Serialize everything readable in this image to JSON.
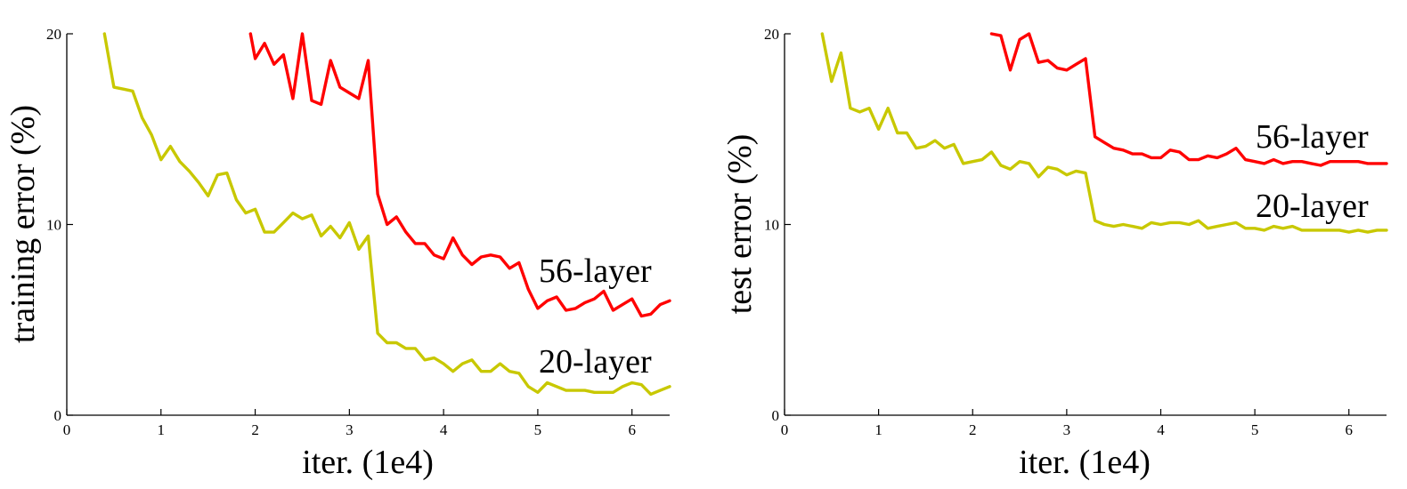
{
  "chart_data": [
    {
      "type": "line",
      "title": "",
      "xlabel": "iter. (1e4)",
      "ylabel": "training error (%)",
      "xlim": [
        0,
        6.4
      ],
      "ylim": [
        0,
        20
      ],
      "xticks": [
        "0",
        "1",
        "2",
        "3",
        "4",
        "5",
        "6"
      ],
      "yticks": [
        "0",
        "10",
        "20"
      ],
      "grid": false,
      "series": [
        {
          "name": "56-layer",
          "color": "#ff0000",
          "x": [
            1.95,
            2.0,
            2.1,
            2.2,
            2.3,
            2.4,
            2.5,
            2.6,
            2.7,
            2.8,
            2.9,
            3.0,
            3.1,
            3.2,
            3.3,
            3.4,
            3.5,
            3.6,
            3.7,
            3.8,
            3.9,
            4.0,
            4.1,
            4.2,
            4.3,
            4.4,
            4.5,
            4.6,
            4.7,
            4.8,
            4.9,
            5.0,
            5.1,
            5.2,
            5.3,
            5.4,
            5.5,
            5.6,
            5.7,
            5.8,
            5.9,
            6.0,
            6.1,
            6.2,
            6.3,
            6.4
          ],
          "y": [
            20.0,
            18.7,
            19.5,
            18.4,
            18.9,
            16.6,
            20.0,
            16.5,
            16.3,
            18.6,
            17.2,
            16.9,
            16.6,
            18.6,
            11.6,
            10.0,
            10.4,
            9.6,
            9.0,
            9.0,
            8.4,
            8.2,
            9.3,
            8.4,
            7.9,
            8.3,
            8.4,
            8.3,
            7.7,
            8.0,
            6.6,
            5.6,
            6.0,
            6.2,
            5.5,
            5.6,
            5.9,
            6.1,
            6.5,
            5.5,
            5.8,
            6.1,
            5.2,
            5.3,
            5.8,
            6.0
          ]
        },
        {
          "name": "20-layer",
          "color": "#c8c800",
          "x": [
            0.4,
            0.5,
            0.6,
            0.7,
            0.8,
            0.9,
            1.0,
            1.1,
            1.2,
            1.3,
            1.4,
            1.5,
            1.6,
            1.7,
            1.8,
            1.9,
            2.0,
            2.1,
            2.2,
            2.3,
            2.4,
            2.5,
            2.6,
            2.7,
            2.8,
            2.9,
            3.0,
            3.1,
            3.2,
            3.3,
            3.4,
            3.5,
            3.6,
            3.7,
            3.8,
            3.9,
            4.0,
            4.1,
            4.2,
            4.3,
            4.4,
            4.5,
            4.6,
            4.7,
            4.8,
            4.9,
            5.0,
            5.1,
            5.2,
            5.3,
            5.4,
            5.5,
            5.6,
            5.7,
            5.8,
            5.9,
            6.0,
            6.1,
            6.2,
            6.3,
            6.4
          ],
          "y": [
            20.0,
            17.2,
            17.1,
            17.0,
            15.6,
            14.7,
            13.4,
            14.1,
            13.3,
            12.8,
            12.2,
            11.5,
            12.6,
            12.7,
            11.3,
            10.6,
            10.8,
            9.6,
            9.6,
            10.1,
            10.6,
            10.3,
            10.5,
            9.4,
            9.9,
            9.3,
            10.1,
            8.7,
            9.4,
            4.3,
            3.8,
            3.8,
            3.5,
            3.5,
            2.9,
            3.0,
            2.7,
            2.3,
            2.7,
            2.9,
            2.3,
            2.3,
            2.7,
            2.3,
            2.2,
            1.5,
            1.2,
            1.7,
            1.5,
            1.3,
            1.3,
            1.3,
            1.2,
            1.2,
            1.2,
            1.5,
            1.7,
            1.6,
            1.1,
            1.3,
            1.5
          ]
        }
      ],
      "annotations": [
        "56-layer",
        "20-layer"
      ]
    },
    {
      "type": "line",
      "title": "",
      "xlabel": "iter. (1e4)",
      "ylabel": "test error (%)",
      "xlim": [
        0,
        6.4
      ],
      "ylim": [
        0,
        20
      ],
      "xticks": [
        "0",
        "1",
        "2",
        "3",
        "4",
        "5",
        "6"
      ],
      "yticks": [
        "0",
        "10",
        "20"
      ],
      "grid": false,
      "series": [
        {
          "name": "56-layer",
          "color": "#ff0000",
          "x": [
            2.2,
            2.3,
            2.4,
            2.5,
            2.6,
            2.7,
            2.8,
            2.9,
            3.0,
            3.1,
            3.2,
            3.3,
            3.4,
            3.5,
            3.6,
            3.7,
            3.8,
            3.9,
            4.0,
            4.1,
            4.2,
            4.3,
            4.4,
            4.5,
            4.6,
            4.7,
            4.8,
            4.9,
            5.0,
            5.1,
            5.2,
            5.3,
            5.4,
            5.5,
            5.6,
            5.7,
            5.8,
            5.9,
            6.0,
            6.1,
            6.2,
            6.3,
            6.4
          ],
          "y": [
            20.0,
            19.9,
            18.1,
            19.7,
            20.0,
            18.5,
            18.6,
            18.2,
            18.1,
            18.4,
            18.7,
            14.6,
            14.3,
            14.0,
            13.9,
            13.7,
            13.7,
            13.5,
            13.5,
            13.9,
            13.8,
            13.4,
            13.4,
            13.6,
            13.5,
            13.7,
            14.0,
            13.4,
            13.3,
            13.2,
            13.4,
            13.2,
            13.3,
            13.3,
            13.2,
            13.1,
            13.3,
            13.3,
            13.3,
            13.3,
            13.2,
            13.2,
            13.2
          ]
        },
        {
          "name": "20-layer",
          "color": "#c8c800",
          "x": [
            0.4,
            0.5,
            0.6,
            0.7,
            0.8,
            0.9,
            1.0,
            1.1,
            1.2,
            1.3,
            1.4,
            1.5,
            1.6,
            1.7,
            1.8,
            1.9,
            2.0,
            2.1,
            2.2,
            2.3,
            2.4,
            2.5,
            2.6,
            2.7,
            2.8,
            2.9,
            3.0,
            3.1,
            3.2,
            3.3,
            3.4,
            3.5,
            3.6,
            3.7,
            3.8,
            3.9,
            4.0,
            4.1,
            4.2,
            4.3,
            4.4,
            4.5,
            4.6,
            4.7,
            4.8,
            4.9,
            5.0,
            5.1,
            5.2,
            5.3,
            5.4,
            5.5,
            5.6,
            5.7,
            5.8,
            5.9,
            6.0,
            6.1,
            6.2,
            6.3,
            6.4
          ],
          "y": [
            20.0,
            17.5,
            19.0,
            16.1,
            15.9,
            16.1,
            15.0,
            16.1,
            14.8,
            14.8,
            14.0,
            14.1,
            14.4,
            14.0,
            14.2,
            13.2,
            13.3,
            13.4,
            13.8,
            13.1,
            12.9,
            13.3,
            13.2,
            12.5,
            13.0,
            12.9,
            12.6,
            12.8,
            12.7,
            10.2,
            10.0,
            9.9,
            10.0,
            9.9,
            9.8,
            10.1,
            10.0,
            10.1,
            10.1,
            10.0,
            10.2,
            9.8,
            9.9,
            10.0,
            10.1,
            9.8,
            9.8,
            9.7,
            9.9,
            9.8,
            9.9,
            9.7,
            9.7,
            9.7,
            9.7,
            9.7,
            9.6,
            9.7,
            9.6,
            9.7,
            9.7
          ]
        }
      ],
      "annotations": [
        "56-layer",
        "20-layer"
      ]
    }
  ]
}
